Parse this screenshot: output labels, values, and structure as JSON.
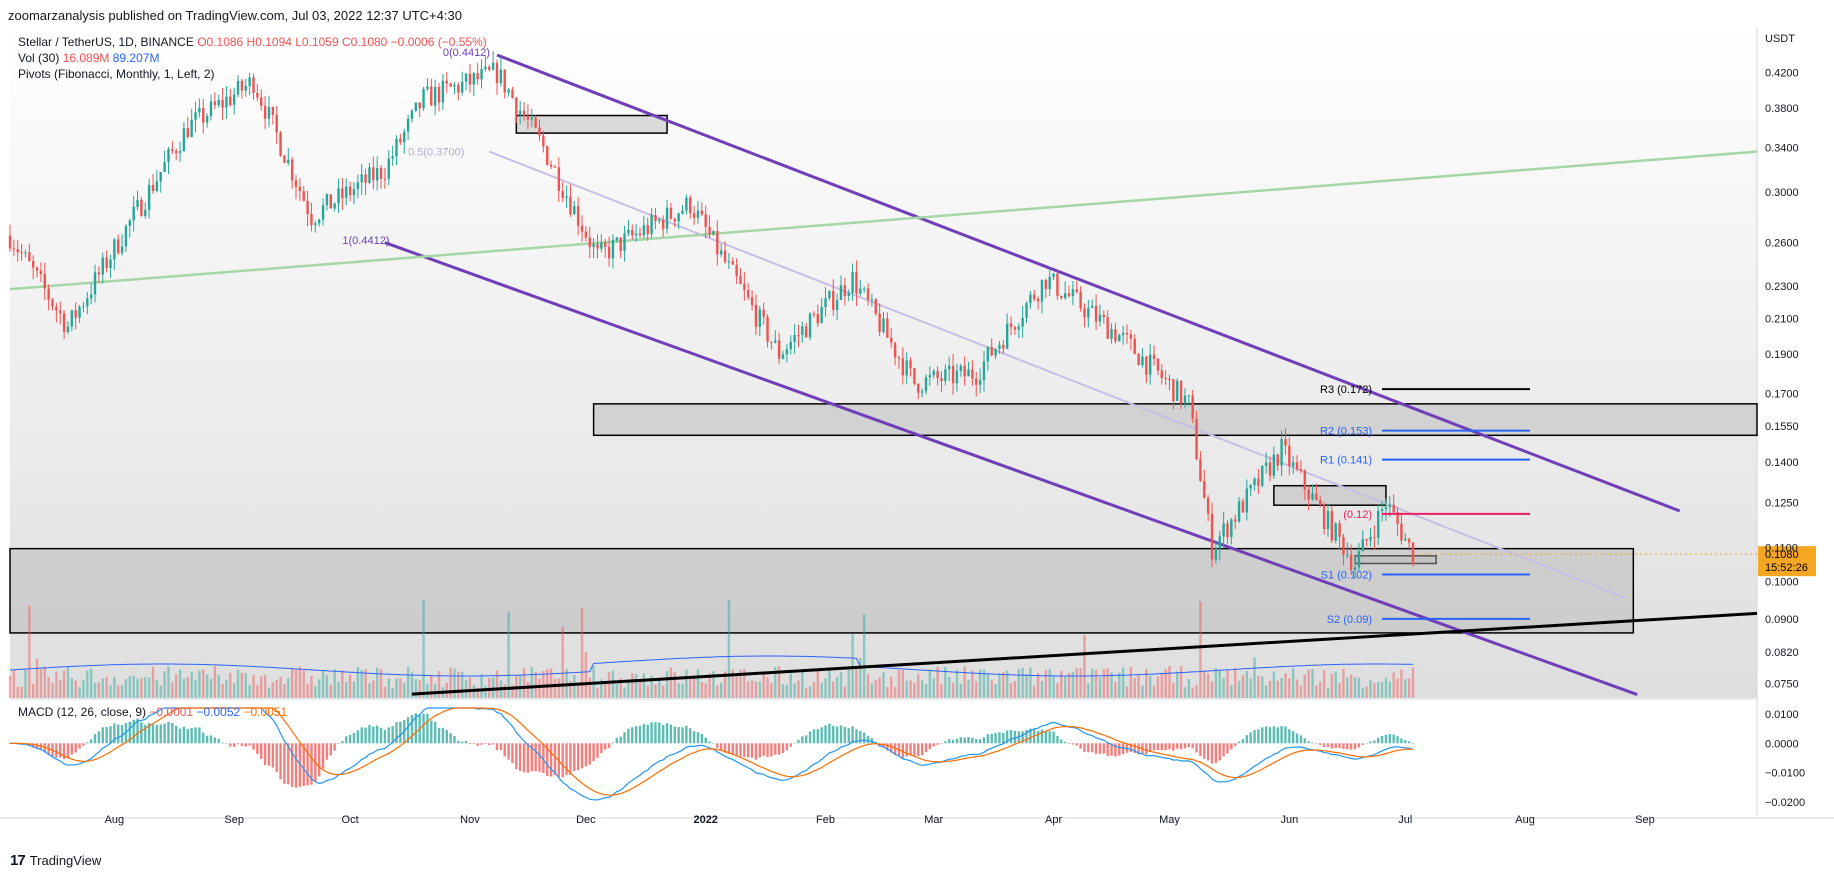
{
  "header": {
    "published_by": "zoomarzanalysis published on TradingView.com, Jul 03, 2022 12:37 UTC+4:30"
  },
  "legend": {
    "symbol_line": "Stellar / TetherUS, 1D, BINANCE",
    "ohlc": "O0.1086 H0.1094 L0.1059 C0.1080 −0.0006 (−0.55%)",
    "vol_label": "Vol (30)",
    "vol_value_1": "16.089M",
    "vol_value_2": "89.207M",
    "pivots_label": "Pivots (Fibonacci, Monthly, 1, Left, 2)",
    "macd_label": "MACD (12, 26, close, 9)",
    "macd_hist": "−0.0001",
    "macd_line": "−0.0052",
    "macd_signal": "−0.0051"
  },
  "price_axis": {
    "currency": "USDT",
    "ticks": [
      "0.4200",
      "0.3800",
      "0.3400",
      "0.3000",
      "0.2600",
      "0.2300",
      "0.2100",
      "0.1900",
      "0.1700",
      "0.1550",
      "0.1400",
      "0.1250",
      "0.1100",
      "0.1000",
      "0.0900",
      "0.0820",
      "0.0750"
    ],
    "last_price": "0.1080",
    "countdown": "15:52:26"
  },
  "macd_axis": {
    "ticks": [
      "0.0100",
      "0.0000",
      "−0.0100",
      "−0.0200"
    ]
  },
  "time_axis": {
    "labels": [
      "Aug",
      "Sep",
      "Oct",
      "Nov",
      "Dec",
      "2022",
      "Feb",
      "Mar",
      "Apr",
      "May",
      "Jun",
      "Jul",
      "Aug",
      "Sep"
    ]
  },
  "fib_labels": {
    "top": "0(0.4412)",
    "mid": "0.5(0.3700)",
    "bottom": "1(0.4412)"
  },
  "pivot_levels": [
    {
      "label": "R3 (0.172)",
      "value": 0.172,
      "color": "#000000"
    },
    {
      "label": "R2 (0.153)",
      "value": 0.153,
      "color": "#2962ff"
    },
    {
      "label": "R1 (0.141)",
      "value": 0.141,
      "color": "#2962ff"
    },
    {
      "label": "(0.12)",
      "value": 0.121,
      "color": "#e91e63"
    },
    {
      "label": "S1 (0.102)",
      "value": 0.102,
      "color": "#2962ff"
    },
    {
      "label": "S2 (0.09)",
      "value": 0.09,
      "color": "#2962ff"
    }
  ],
  "footer": {
    "brand": "TradingView"
  },
  "colors": {
    "up": "#26a69a",
    "down": "#ef5350",
    "channel": "#6f3fb8",
    "trend_green": "#a5d6a7",
    "price_badge": "#f5a623"
  },
  "chart_data": {
    "type": "candlestick",
    "title": "Stellar / TetherUS, 1D, BINANCE",
    "y_scale": "log",
    "ylim": [
      0.072,
      0.45
    ],
    "x_range": [
      "2021-07-05",
      "2022-09-30"
    ],
    "keypoints": [
      {
        "date": "2021-07-05",
        "close": 0.265
      },
      {
        "date": "2021-07-20",
        "close": 0.205
      },
      {
        "date": "2021-08-05",
        "close": 0.275
      },
      {
        "date": "2021-08-20",
        "close": 0.36
      },
      {
        "date": "2021-09-06",
        "close": 0.41
      },
      {
        "date": "2021-09-21",
        "close": 0.28
      },
      {
        "date": "2021-10-10",
        "close": 0.32
      },
      {
        "date": "2021-10-20",
        "close": 0.39
      },
      {
        "date": "2021-11-08",
        "close": 0.42
      },
      {
        "date": "2021-11-20",
        "close": 0.34
      },
      {
        "date": "2021-12-04",
        "close": 0.25
      },
      {
        "date": "2021-12-28",
        "close": 0.29
      },
      {
        "date": "2022-01-20",
        "close": 0.19
      },
      {
        "date": "2022-02-08",
        "close": 0.235
      },
      {
        "date": "2022-02-24",
        "close": 0.175
      },
      {
        "date": "2022-03-12",
        "close": 0.18
      },
      {
        "date": "2022-03-30",
        "close": 0.235
      },
      {
        "date": "2022-04-18",
        "close": 0.2
      },
      {
        "date": "2022-05-06",
        "close": 0.165
      },
      {
        "date": "2022-05-12",
        "close": 0.11
      },
      {
        "date": "2022-05-30",
        "close": 0.145
      },
      {
        "date": "2022-06-10",
        "close": 0.12
      },
      {
        "date": "2022-06-18",
        "close": 0.105
      },
      {
        "date": "2022-06-26",
        "close": 0.125
      },
      {
        "date": "2022-07-03",
        "close": 0.108
      }
    ],
    "zones": [
      {
        "from": "2021-11-13",
        "to": "2021-12-22",
        "low": 0.354,
        "high": 0.372
      },
      {
        "from": "2021-12-03",
        "to": "2022-09-30",
        "low": 0.151,
        "high": 0.165
      },
      {
        "from": "2022-05-28",
        "to": "2022-06-26",
        "low": 0.124,
        "high": 0.131
      },
      {
        "from": "2022-06-18",
        "to": "2022-07-09",
        "low": 0.1052,
        "high": 0.1075
      },
      {
        "from": "2021-07-05",
        "to": "2022-08-29",
        "low": 0.0865,
        "high": 0.1097
      }
    ],
    "lines": [
      {
        "name": "channel-top",
        "from": [
          "2021-11-08",
          0.4412
        ],
        "to": [
          "2022-09-10",
          0.122
        ]
      },
      {
        "name": "channel-bottom",
        "from": [
          "2021-10-10",
          0.26
        ],
        "to": [
          "2022-08-30",
          0.0727
        ]
      },
      {
        "name": "fib-mid",
        "from": [
          "2021-11-06",
          0.336
        ],
        "to": [
          "2022-08-27",
          0.0955
        ]
      },
      {
        "name": "green-trend",
        "from": [
          "2021-07-05",
          0.228
        ],
        "to": [
          "2022-09-30",
          0.336
        ]
      },
      {
        "name": "black-trend",
        "from": [
          "2021-10-17",
          0.0728
        ],
        "to": [
          "2022-09-30",
          0.0914
        ]
      }
    ]
  }
}
